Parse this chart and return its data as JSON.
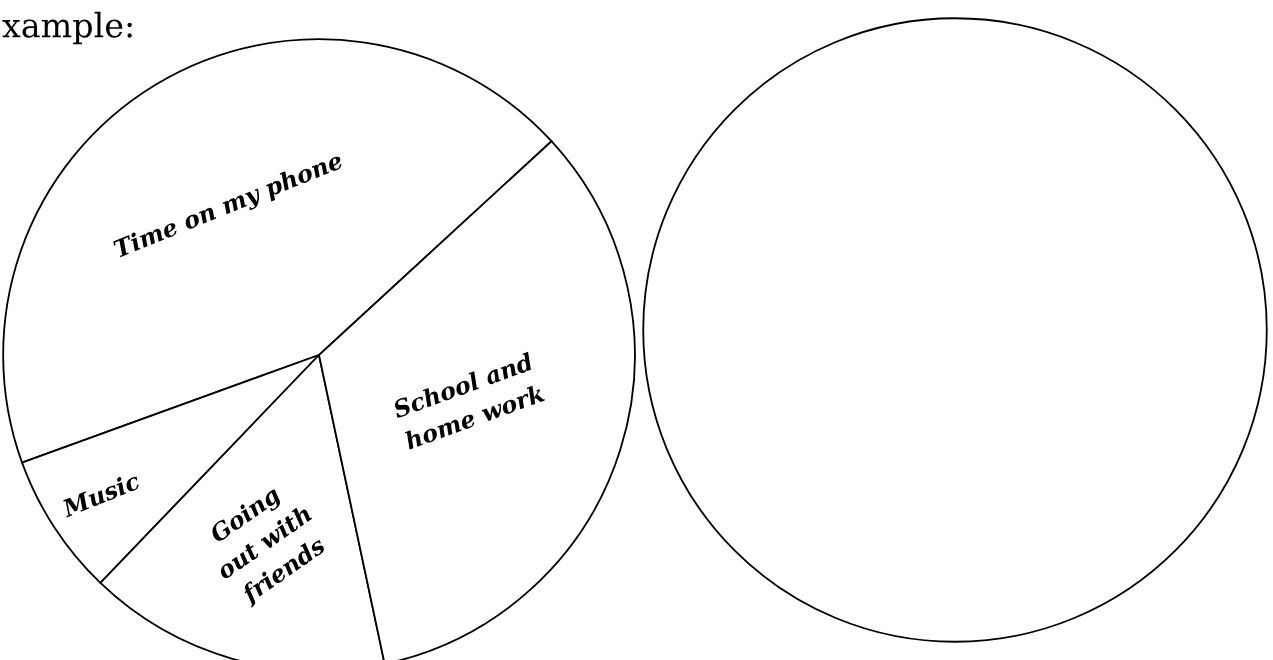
{
  "chart_data": {
    "type": "pie",
    "title": "xample:",
    "categories": [
      "Time on my phone",
      "Music",
      "Going\nout with\nfriends",
      "School and\nhome work"
    ],
    "values": [
      43.7,
      7.3,
      15.5,
      33.5
    ],
    "colors": [
      "#ffffff",
      "#ffffff",
      "#ffffff",
      "#ffffff"
    ]
  }
}
